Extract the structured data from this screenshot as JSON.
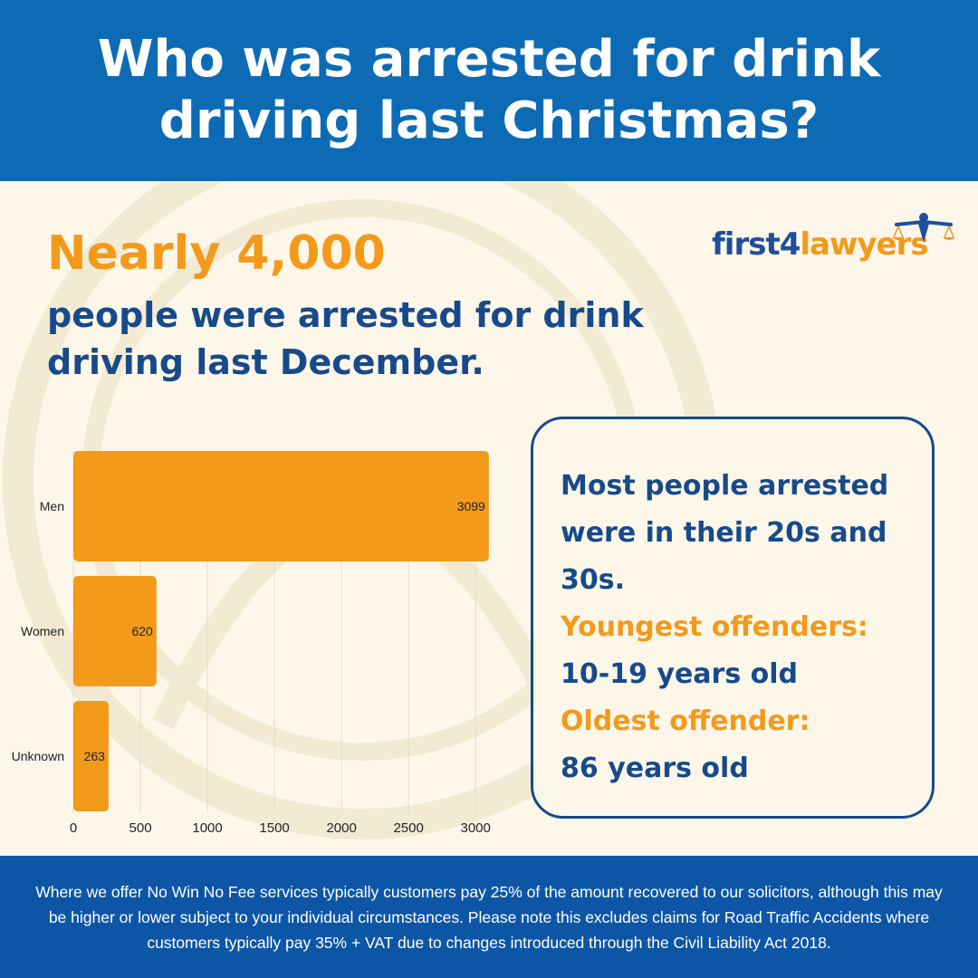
{
  "header": {
    "title": "Who was arrested for drink driving last Christmas?"
  },
  "logo": {
    "text_part1": "first4",
    "text_part2": "lawyers"
  },
  "headline": {
    "stat": "Nearly 4,000",
    "text": "people were arrested for drink driving last December."
  },
  "chart_data": {
    "type": "bar",
    "orientation": "horizontal",
    "categories": [
      "Men",
      "Women",
      "Unknown"
    ],
    "values": [
      3099,
      620,
      263
    ],
    "xlim": [
      0,
      3100
    ],
    "xticks": [
      "0",
      "500",
      "1000",
      "1500",
      "2000",
      "2500",
      "3000"
    ],
    "title": "",
    "xlabel": "",
    "ylabel": "",
    "grid": true,
    "bar_color": "#f39a1b"
  },
  "card": {
    "line1": "Most people arrested were in their 20s and 30s.",
    "youngest_label": "Youngest offenders:",
    "youngest_value": "10-19 years old",
    "oldest_label": "Oldest offender:",
    "oldest_value": "86 years old"
  },
  "footer": {
    "text": "Where we offer No Win No Fee services typically customers pay 25% of the amount recovered to our solicitors, although this may be higher or lower subject to your individual circumstances. Please note this excludes claims for Road Traffic Accidents where customers typically pay 35% + VAT due to changes introduced through the Civil Liability Act 2018."
  },
  "colors": {
    "header_bg": "#0d6bb6",
    "footer_bg": "#0d56a6",
    "accent_orange": "#f39a1b",
    "navy": "#174a8a",
    "background": "#fdf7ea"
  }
}
